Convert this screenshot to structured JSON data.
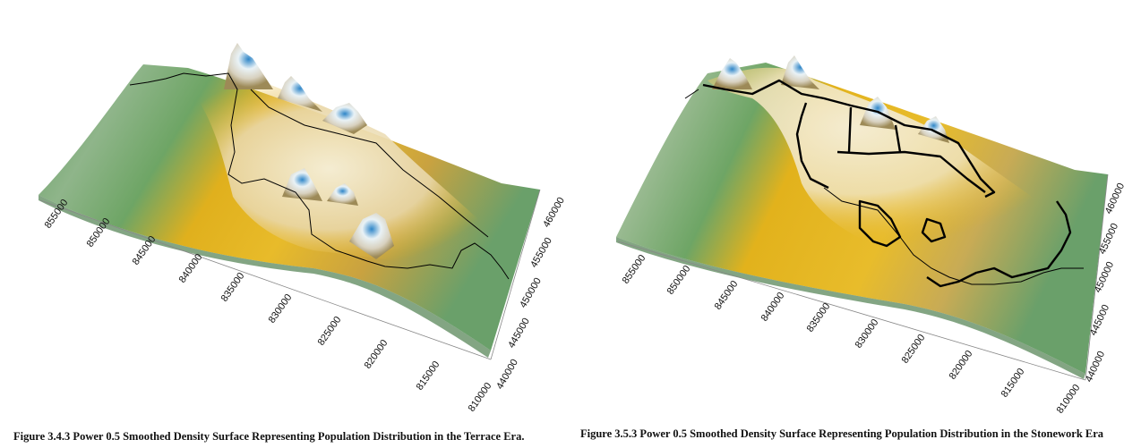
{
  "figures": [
    {
      "caption": "Figure 3.4.3 Power 0.5 Smoothed Density Surface Representing Population Distribution in the Terrace Era.",
      "axis_a_ticks": [
        "855000",
        "850000",
        "845000",
        "840000",
        "835000",
        "830000",
        "825000",
        "820000",
        "815000",
        "810000"
      ],
      "axis_b_ticks": [
        "460000",
        "455000",
        "450000",
        "445000",
        "440000"
      ]
    },
    {
      "caption": "Figure 3.5.3 Power 0.5 Smoothed Density Surface Representing Population Distribution in the Stonework Era",
      "axis_a_ticks": [
        "855000",
        "850000",
        "845000",
        "840000",
        "835000",
        "830000",
        "825000",
        "820000",
        "815000",
        "810000"
      ],
      "axis_b_ticks": [
        "460000",
        "455000",
        "450000",
        "445000",
        "440000"
      ]
    }
  ],
  "colors": {
    "low_density": "#6fa56a",
    "mid_density": "#e6b21a",
    "high_density": "#f4f1ea",
    "peak_density": "#2f86c8",
    "outline": "#000000"
  }
}
